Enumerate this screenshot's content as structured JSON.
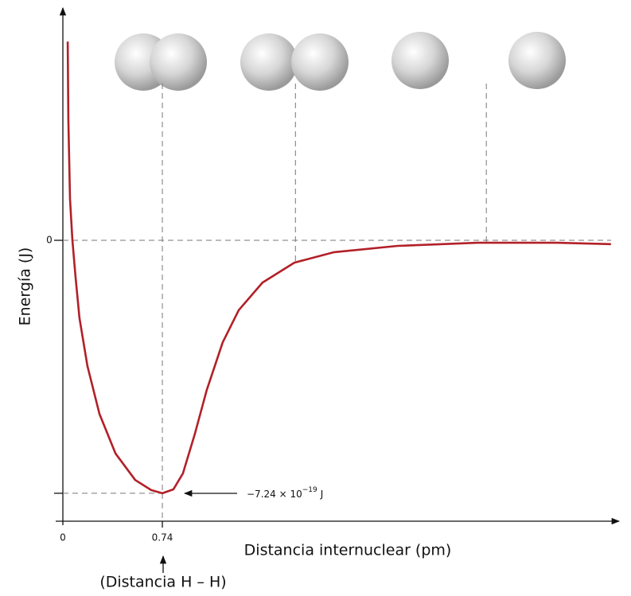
{
  "chart_data": {
    "type": "line",
    "x_label": "Distancia internuclear (pm)",
    "y_label": "Energía (J)",
    "x_note": "(Distancia H – H)",
    "annotation": {
      "text": "−7.24 × 10",
      "exponent": "−19",
      "unit": "J",
      "value": -7.24e-19
    },
    "xlim": [
      0,
      4.09
    ],
    "xticks": [
      0,
      0.74
    ],
    "ylim": [
      -8.04e-19,
      6.56e-19
    ],
    "yticks": [
      0
    ],
    "reference_x": [
      0.74,
      1.73,
      3.15
    ],
    "series": [
      {
        "color": "#b22028",
        "x": [
          0.036,
          0.041,
          0.053,
          0.071,
          0.095,
          0.124,
          0.183,
          0.272,
          0.391,
          0.538,
          0.657,
          0.74,
          0.822,
          0.893,
          0.982,
          1.071,
          1.189,
          1.308,
          1.485,
          1.722,
          2.018,
          2.491,
          3.083,
          3.675,
          4.077
        ],
        "values": [
          5.69e-19,
          3.46e-19,
          1.18e-19,
          0,
          -1.09e-19,
          -2.23e-19,
          -3.6e-19,
          -4.97e-19,
          -6.1e-19,
          -6.86e-19,
          -7.15e-19,
          -7.24e-19,
          -7.13e-19,
          -6.67e-19,
          -5.54e-19,
          -4.28e-19,
          -2.92e-19,
          -2e-19,
          -1.21e-19,
          -6.4e-20,
          -3.4e-20,
          -1.6e-20,
          -7e-21,
          -7e-21,
          -1.1e-20
        ]
      }
    ]
  }
}
